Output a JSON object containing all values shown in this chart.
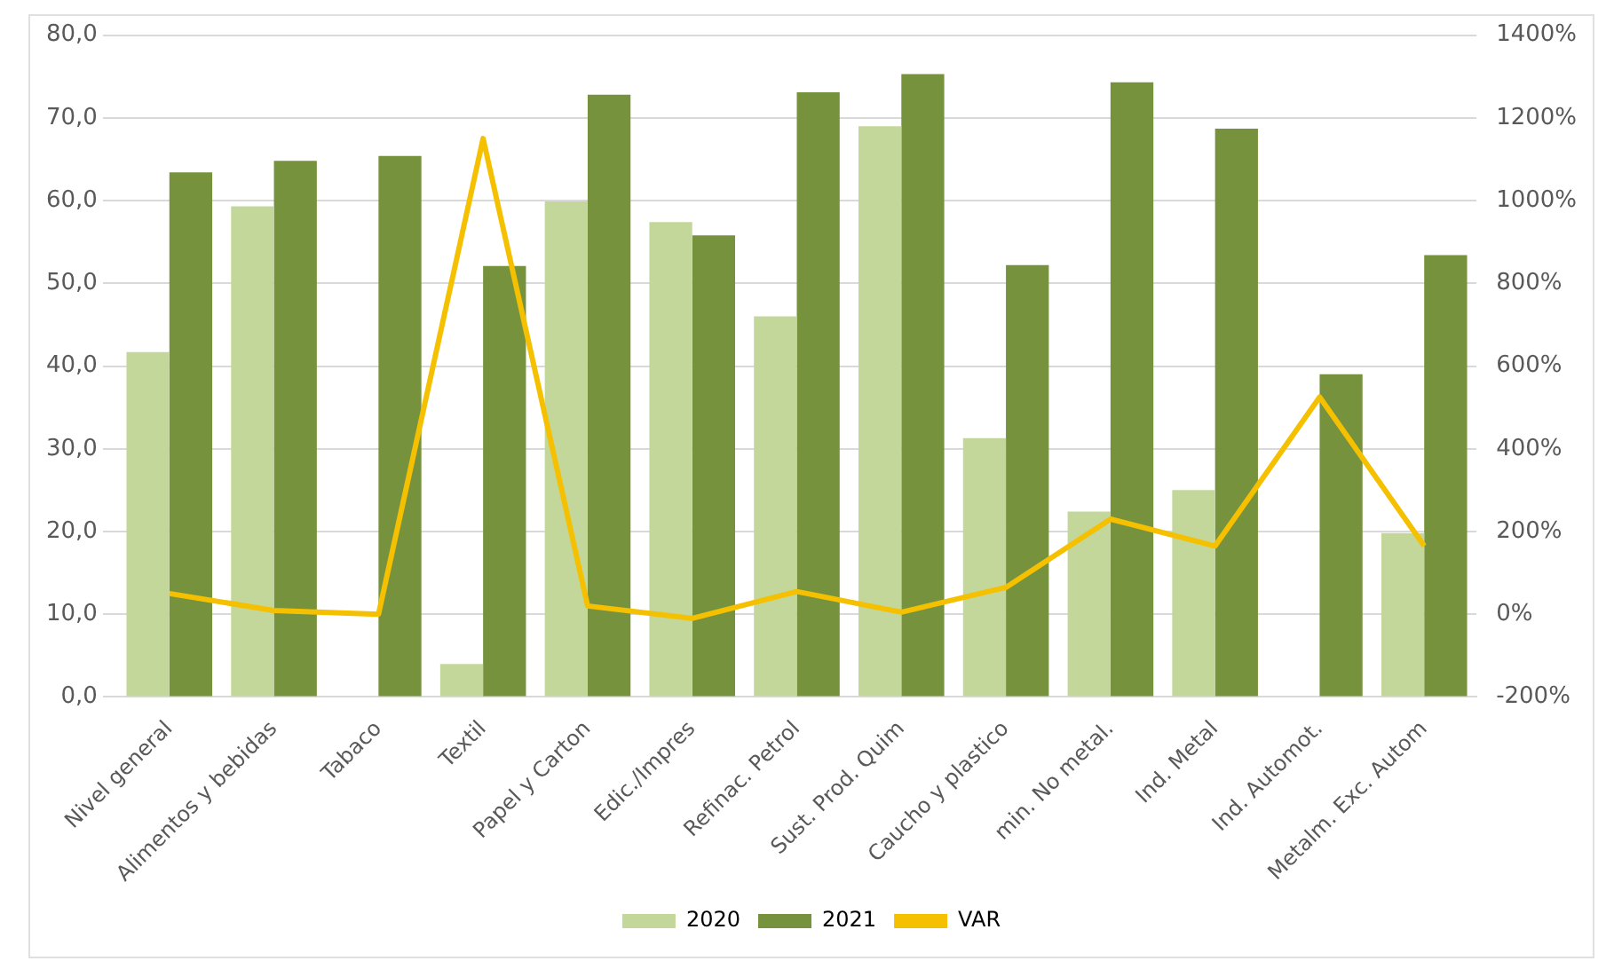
{
  "chart_data": {
    "type": "bar",
    "categories": [
      "Nivel general",
      "Alimentos y bebidas",
      "Tabaco",
      "Textil",
      "Papel y Carton",
      "Edic./Impres",
      "Refinac. Petrol",
      "Sust. Prod. Quim",
      "Caucho y plastico",
      "min. No metal.",
      "Ind. Metal",
      "Ind. Automot.",
      "Metalm. Exc. Autom"
    ],
    "series": [
      {
        "name": "2020",
        "color": "#c4d79b",
        "values": [
          41.7,
          59.3,
          null,
          4.0,
          59.9,
          57.4,
          46.0,
          69.0,
          31.3,
          22.4,
          25.0,
          null,
          19.8
        ]
      },
      {
        "name": "2021",
        "color": "#76923c",
        "values": [
          63.4,
          64.8,
          65.4,
          52.1,
          72.8,
          55.8,
          73.1,
          75.3,
          52.2,
          74.3,
          68.7,
          39.0,
          53.4
        ]
      },
      {
        "name": "VAR",
        "type": "line",
        "axis": "y2",
        "color": "#f5c000",
        "values": [
          50,
          9,
          0,
          1150,
          20,
          -10,
          55,
          5,
          65,
          230,
          165,
          525,
          165
        ]
      }
    ],
    "ylim": [
      0,
      80
    ],
    "yticks": [
      {
        "value": 0,
        "label": "0,0"
      },
      {
        "value": 10,
        "label": "10,0"
      },
      {
        "value": 20,
        "label": "20,0"
      },
      {
        "value": 30,
        "label": "30,0"
      },
      {
        "value": 40,
        "label": "40,0"
      },
      {
        "value": 50,
        "label": "50,0"
      },
      {
        "value": 60,
        "label": "60,0"
      },
      {
        "value": 70,
        "label": "70,0"
      },
      {
        "value": 80,
        "label": "80,0"
      }
    ],
    "y2lim": [
      -200,
      1400
    ],
    "y2ticks": [
      {
        "value": -200,
        "label": "-200%"
      },
      {
        "value": 0,
        "label": "0%"
      },
      {
        "value": 200,
        "label": "200%"
      },
      {
        "value": 400,
        "label": "400%"
      },
      {
        "value": 600,
        "label": "600%"
      },
      {
        "value": 800,
        "label": "800%"
      },
      {
        "value": 1000,
        "label": "1000%"
      },
      {
        "value": 1200,
        "label": "1200%"
      },
      {
        "value": 1400,
        "label": "1400%"
      }
    ],
    "grid": "y",
    "legend": "bottom",
    "marker": "none"
  }
}
